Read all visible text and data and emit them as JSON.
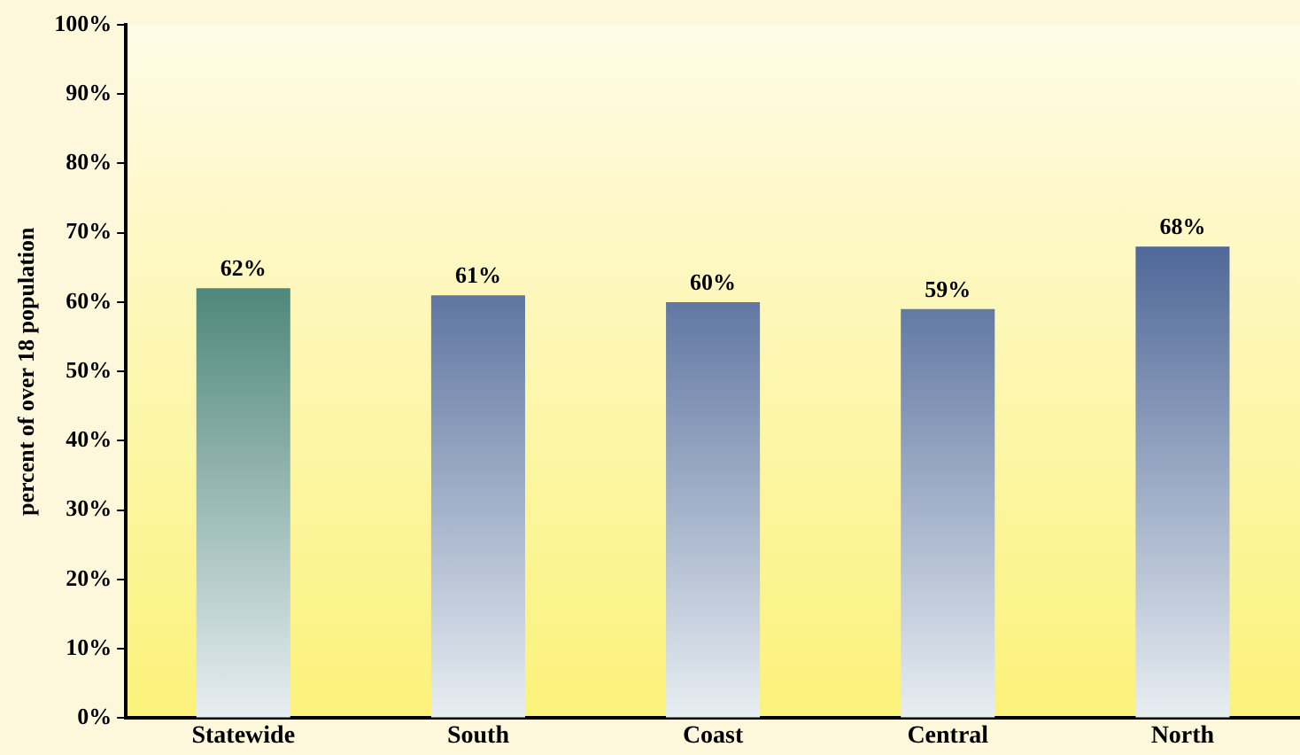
{
  "chart_data": {
    "type": "bar",
    "ylabel": "percent of over 18 population",
    "categories": [
      "Statewide",
      "South",
      "Coast",
      "Central",
      "North"
    ],
    "values": [
      62,
      61,
      60,
      59,
      68
    ],
    "colors": [
      "#0a5a44",
      "#1f3d7c",
      "#1f3d7c",
      "#1f3d7c",
      "#1f3d7c"
    ],
    "value_labels": [
      "62%",
      "61%",
      "60%",
      "59%",
      "68%"
    ],
    "ylim": [
      0,
      100
    ],
    "yticks": [
      {
        "value": 0,
        "label": "0%"
      },
      {
        "value": 10,
        "label": "10%"
      },
      {
        "value": 20,
        "label": "20%"
      },
      {
        "value": 30,
        "label": "30%"
      },
      {
        "value": 40,
        "label": "40%"
      },
      {
        "value": 50,
        "label": "50%"
      },
      {
        "value": 60,
        "label": "60%"
      },
      {
        "value": 70,
        "label": "70%"
      },
      {
        "value": 80,
        "label": "80%"
      },
      {
        "value": 90,
        "label": "90%"
      },
      {
        "value": 100,
        "label": "100%"
      }
    ],
    "grid": false,
    "legend": false
  }
}
